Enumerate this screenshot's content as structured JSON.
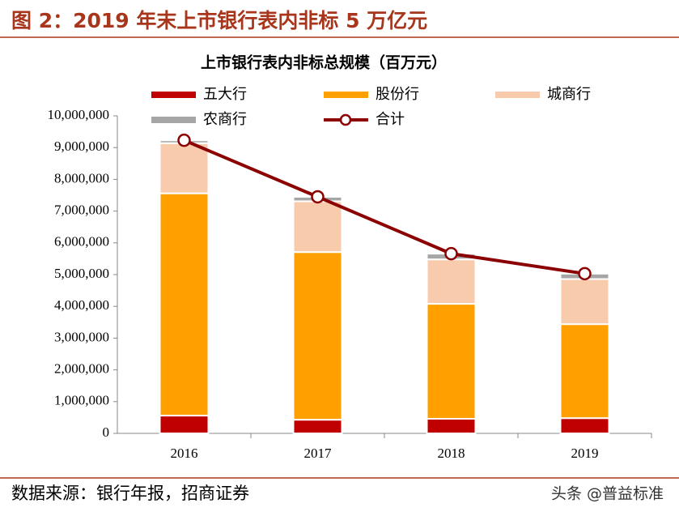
{
  "header": {
    "title": "图 2：2019 年末上市银行表内非标 5 万亿元"
  },
  "chart_data": {
    "type": "bar",
    "stacked": true,
    "title": "上市银行表内非标总规模（百万元）",
    "categories": [
      "2016",
      "2017",
      "2018",
      "2019"
    ],
    "series": [
      {
        "name": "五大行",
        "color": "#c00000",
        "values": [
          560000,
          430000,
          460000,
          480000
        ]
      },
      {
        "name": "股份行",
        "color": "#ffa000",
        "values": [
          7000000,
          5280000,
          3620000,
          2960000
        ]
      },
      {
        "name": "城商行",
        "color": "#f8cbad",
        "values": [
          1580000,
          1600000,
          1400000,
          1420000
        ]
      },
      {
        "name": "农商行",
        "color": "#a6a6a6",
        "values": [
          90000,
          140000,
          180000,
          170000
        ]
      },
      {
        "name": "合计",
        "type": "line",
        "color": "#8b0000",
        "values": [
          9230000,
          7450000,
          5660000,
          5030000
        ]
      }
    ],
    "ylim": [
      0,
      10000000
    ],
    "yticks": [
      0,
      {
        "value": 1000000,
        "label": "1,000,000"
      },
      {
        "value": 2000000,
        "label": "2,000,000"
      },
      {
        "value": 3000000,
        "label": "3,000,000"
      },
      {
        "value": 4000000,
        "label": "4,000,000"
      },
      {
        "value": 5000000,
        "label": "5,000,000"
      },
      {
        "value": 6000000,
        "label": "6,000,000"
      },
      {
        "value": 7000000,
        "label": "7,000,000"
      },
      {
        "value": 8000000,
        "label": "8,000,000"
      },
      {
        "value": 9000000,
        "label": "9,000,000"
      },
      {
        "value": 10000000,
        "label": "10,000,000"
      }
    ],
    "grid": false
  },
  "footer": {
    "source": "数据来源：银行年报，招商证券",
    "watermark": "头条 @普益标准"
  }
}
